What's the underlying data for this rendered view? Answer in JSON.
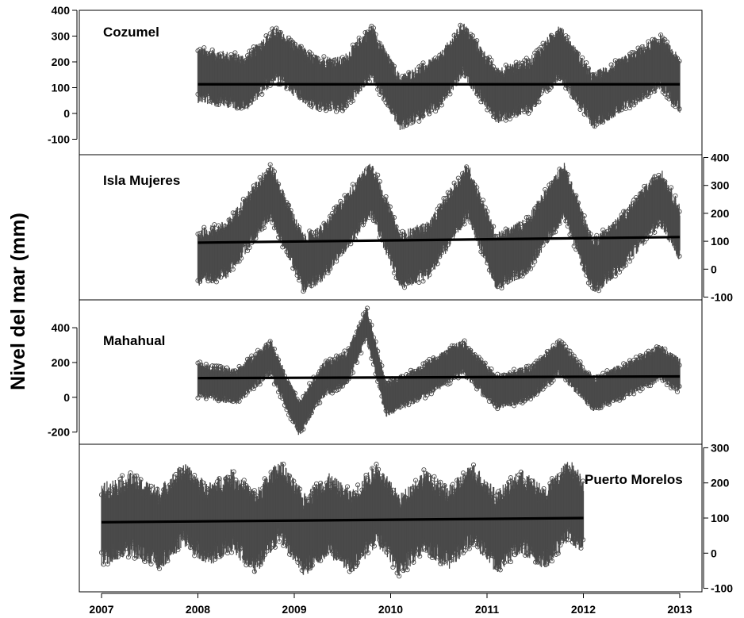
{
  "chart_data": {
    "type": "scatter",
    "ylabel": "Nivel del mar (mm)",
    "x_ticks": [
      "2007",
      "2008",
      "2009",
      "2010",
      "2011",
      "2012",
      "2013"
    ],
    "xlim": [
      2007,
      2013
    ],
    "colors": {
      "points": "#4a4a4a",
      "trend": "#000000"
    },
    "panels": [
      {
        "name": "Cozumel",
        "y_axis_side": "left",
        "ylim": [
          -160,
          400
        ],
        "y_ticks": [
          "400",
          "300",
          "200",
          "100",
          "0",
          "-100"
        ],
        "x_range": [
          2008.0,
          2013.0
        ],
        "trend": {
          "x": [
            2008.0,
            2013.0
          ],
          "y": [
            113,
            113
          ]
        },
        "seasonal_mean": [
          [
            2008.0,
            150
          ],
          [
            2008.5,
            120
          ],
          [
            2008.8,
            230
          ],
          [
            2009.2,
            120
          ],
          [
            2009.5,
            110
          ],
          [
            2009.8,
            240
          ],
          [
            2010.1,
            40
          ],
          [
            2010.5,
            120
          ],
          [
            2010.75,
            250
          ],
          [
            2011.1,
            70
          ],
          [
            2011.45,
            110
          ],
          [
            2011.75,
            240
          ],
          [
            2012.1,
            50
          ],
          [
            2012.5,
            130
          ],
          [
            2012.8,
            200
          ],
          [
            2013.0,
            110
          ]
        ],
        "spread": 110
      },
      {
        "name": "Isla Mujeres",
        "y_axis_side": "right",
        "ylim": [
          -110,
          410
        ],
        "y_ticks": [
          "400",
          "300",
          "200",
          "100",
          "0",
          "-100"
        ],
        "x_range": [
          2008.0,
          2013.0
        ],
        "trend": {
          "x": [
            2008.0,
            2013.0
          ],
          "y": [
            95,
            115
          ]
        },
        "seasonal_mean": [
          [
            2008.0,
            40
          ],
          [
            2008.3,
            70
          ],
          [
            2008.75,
            280
          ],
          [
            2009.1,
            20
          ],
          [
            2009.3,
            60
          ],
          [
            2009.8,
            290
          ],
          [
            2010.1,
            30
          ],
          [
            2010.4,
            70
          ],
          [
            2010.8,
            280
          ],
          [
            2011.1,
            25
          ],
          [
            2011.4,
            80
          ],
          [
            2011.8,
            280
          ],
          [
            2012.1,
            10
          ],
          [
            2012.35,
            80
          ],
          [
            2012.8,
            260
          ],
          [
            2013.0,
            130
          ]
        ],
        "spread": 105
      },
      {
        "name": "Mahahual",
        "y_axis_side": "left",
        "ylim": [
          -270,
          560
        ],
        "y_ticks": [
          "400",
          "200",
          "0",
          "-200"
        ],
        "x_range": [
          2008.0,
          2013.0
        ],
        "trend": {
          "x": [
            2008.0,
            2013.0
          ],
          "y": [
            110,
            120
          ]
        },
        "seasonal_mean": [
          [
            2008.0,
            100
          ],
          [
            2008.4,
            60
          ],
          [
            2008.75,
            230
          ],
          [
            2009.05,
            -120
          ],
          [
            2009.3,
            100
          ],
          [
            2009.55,
            170
          ],
          [
            2009.75,
            430
          ],
          [
            2009.95,
            -10
          ],
          [
            2010.3,
            80
          ],
          [
            2010.75,
            230
          ],
          [
            2011.1,
            30
          ],
          [
            2011.45,
            80
          ],
          [
            2011.75,
            230
          ],
          [
            2012.1,
            20
          ],
          [
            2012.4,
            90
          ],
          [
            2012.8,
            200
          ],
          [
            2013.0,
            120
          ]
        ],
        "spread": 105
      },
      {
        "name": "Puerto Morelos",
        "y_axis_side": "right",
        "ylim": [
          -110,
          310
        ],
        "y_ticks": [
          "300",
          "200",
          "100",
          "0",
          "-100"
        ],
        "x_range": [
          2007.0,
          2012.0
        ],
        "trend": {
          "x": [
            2007.0,
            2012.0
          ],
          "y": [
            88,
            100
          ]
        },
        "seasonal_mean": [
          [
            2007.0,
            80
          ],
          [
            2007.3,
            110
          ],
          [
            2007.6,
            70
          ],
          [
            2007.85,
            140
          ],
          [
            2008.1,
            80
          ],
          [
            2008.35,
            120
          ],
          [
            2008.6,
            60
          ],
          [
            2008.85,
            150
          ],
          [
            2009.1,
            50
          ],
          [
            2009.35,
            110
          ],
          [
            2009.6,
            60
          ],
          [
            2009.85,
            140
          ],
          [
            2010.1,
            50
          ],
          [
            2010.35,
            120
          ],
          [
            2010.6,
            70
          ],
          [
            2010.85,
            140
          ],
          [
            2011.1,
            60
          ],
          [
            2011.35,
            120
          ],
          [
            2011.6,
            70
          ],
          [
            2011.85,
            150
          ],
          [
            2012.0,
            110
          ]
        ],
        "spread": 120
      }
    ]
  }
}
